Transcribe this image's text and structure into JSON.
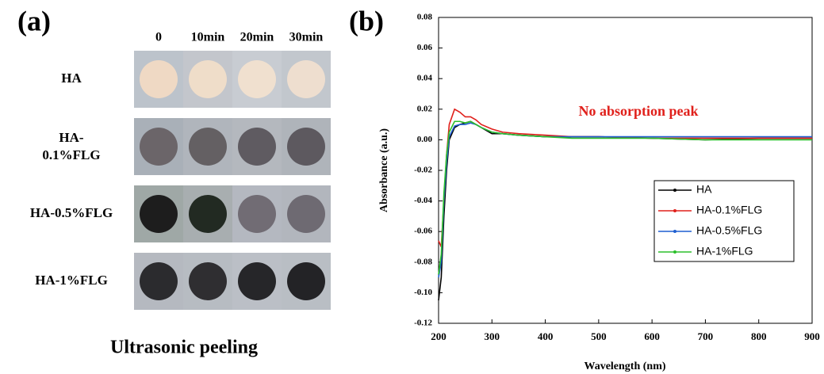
{
  "panel_a": {
    "label": "(a)",
    "columns": [
      "0",
      "10min",
      "20min",
      "30min"
    ],
    "rows": [
      "HA",
      "HA-0.1%FLG",
      "HA-0.5%FLG",
      "HA-1%FLG"
    ],
    "caption": "Ultrasonic peeling"
  },
  "chart_data": {
    "type": "line",
    "panel_label": "(b)",
    "annotation": "No absorption peak",
    "x_label": "Wavelength (nm)",
    "y_label": "Absorbance (a.u.)",
    "x": [
      200,
      205,
      210,
      215,
      220,
      230,
      240,
      250,
      260,
      270,
      280,
      300,
      320,
      350,
      400,
      450,
      500,
      600,
      700,
      800,
      900
    ],
    "series": [
      {
        "name": "HA",
        "color": "#000000",
        "values": [
          -0.105,
          -0.09,
          -0.05,
          -0.02,
          0.0,
          0.008,
          0.01,
          0.011,
          0.012,
          0.01,
          0.008,
          0.004,
          0.004,
          0.003,
          0.002,
          0.002,
          0.002,
          0.001,
          0.0,
          0.001,
          0.001
        ]
      },
      {
        "name": "HA-0.1%FLG",
        "color": "#e0201b",
        "values": [
          -0.066,
          -0.07,
          -0.04,
          -0.01,
          0.01,
          0.02,
          0.018,
          0.015,
          0.015,
          0.013,
          0.01,
          0.007,
          0.005,
          0.004,
          0.003,
          0.002,
          0.002,
          0.001,
          0.001,
          0.001,
          0.001
        ]
      },
      {
        "name": "HA-0.5%FLG",
        "color": "#1f5fd0",
        "values": [
          -0.09,
          -0.08,
          -0.04,
          -0.015,
          0.002,
          0.009,
          0.01,
          0.01,
          0.011,
          0.01,
          0.008,
          0.005,
          0.004,
          0.003,
          0.002,
          0.002,
          0.002,
          0.002,
          0.002,
          0.002,
          0.002
        ]
      },
      {
        "name": "HA-1%FLG",
        "color": "#2bbf2b",
        "values": [
          -0.088,
          -0.075,
          -0.035,
          -0.01,
          0.005,
          0.012,
          0.012,
          0.011,
          0.012,
          0.01,
          0.008,
          0.005,
          0.004,
          0.003,
          0.002,
          0.001,
          0.001,
          0.001,
          0.0,
          0.0,
          0.0
        ]
      }
    ],
    "xlim": [
      200,
      900
    ],
    "xticks": [
      200,
      300,
      400,
      500,
      600,
      700,
      800,
      900
    ],
    "ylim": [
      -0.12,
      0.08
    ],
    "yticks": [
      -0.12,
      {
        "value": -0.1,
        "label": "-0.10"
      },
      -0.08,
      -0.06,
      -0.04,
      -0.02,
      {
        "value": 0,
        "label": "0.00"
      },
      0.02,
      0.04,
      0.06,
      0.08
    ],
    "legend": "right"
  }
}
